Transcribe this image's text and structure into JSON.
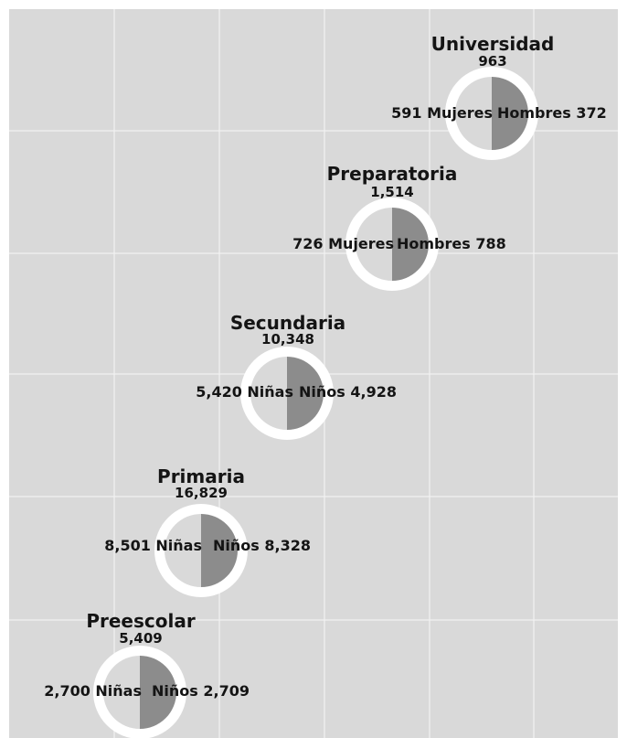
{
  "chart_data": {
    "type": "pie",
    "colors": {
      "background": "#d9d9d9",
      "grid": "#f2f2f2",
      "ring": "#ffffff",
      "left_half": "#d9d9d9",
      "right_half": "#8c8c8c",
      "text": "#141414"
    },
    "grid": true,
    "levels": [
      {
        "title": "Universidad",
        "total": "963",
        "left_value": 591,
        "left_label": "591 Mujeres",
        "right_value": 372,
        "right_label": "Hombres 372"
      },
      {
        "title": "Preparatoria",
        "total": "1,514",
        "left_value": 726,
        "left_label": "726 Mujeres",
        "right_value": 788,
        "right_label": "Hombres 788"
      },
      {
        "title": "Secundaria",
        "total": "10,348",
        "left_value": 5420,
        "left_label": "5,420 Niñas",
        "right_value": 4928,
        "right_label": "Niños 4,928"
      },
      {
        "title": "Primaria",
        "total": "16,829",
        "left_value": 8501,
        "left_label": "8,501 Niñas",
        "right_value": 8328,
        "right_label": "Niños 8,328"
      },
      {
        "title": "Preescolar",
        "total": "5,409",
        "left_value": 2700,
        "left_label": "2,700 Niñas",
        "right_value": 2709,
        "right_label": "Niños 2,709"
      }
    ]
  }
}
